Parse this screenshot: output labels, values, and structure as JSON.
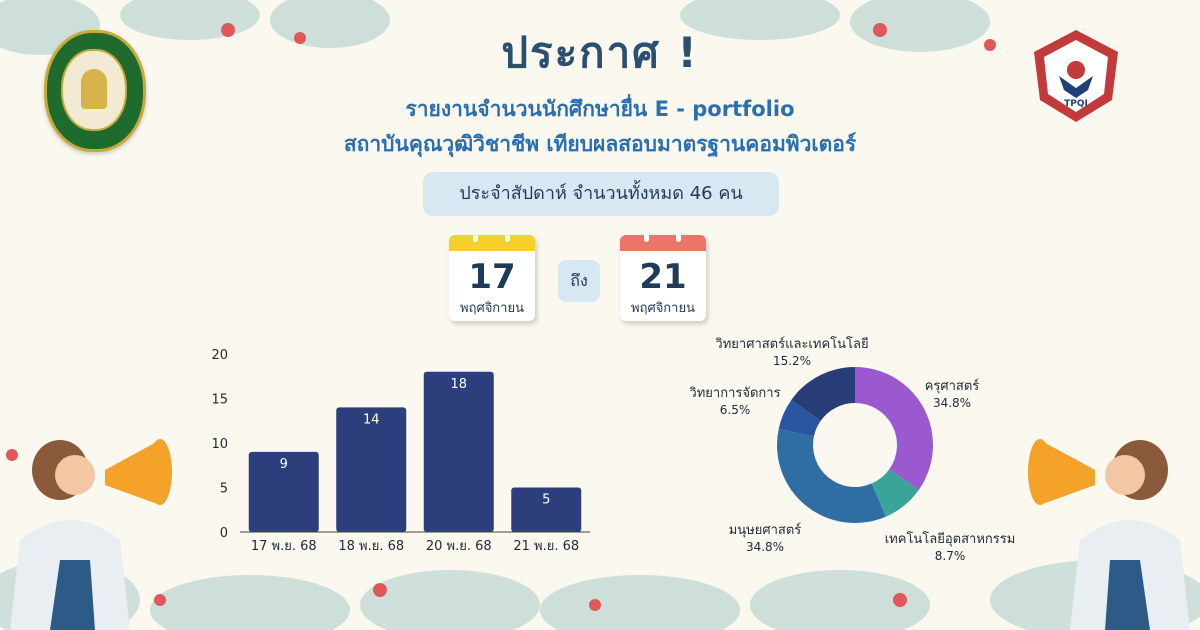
{
  "header": {
    "title": "ประกาศ !",
    "subtitle_line1": "รายงานจำนวนนักศึกษายื่น E - portfolio",
    "subtitle_line2": "สถาบันคุณวุฒิวิชาชีพ เทียบผลสอบมาตรฐานคอมพิวเตอร์",
    "summary": "ประจำสัปดาห์ จำนวนทั้งหมด 46 คน"
  },
  "logos": {
    "left": "Kamphaeng Phet Rajabhat University",
    "right": "TPQI",
    "right_ring": "THAILAND PROFESSIONAL QUALIFICATION INSTITUTE"
  },
  "date_range": {
    "start_day": "17",
    "start_month": "พฤศจิกายน",
    "separator": "ถึง",
    "end_day": "21",
    "end_month": "พฤศจิกายน"
  },
  "colors": {
    "bar": "#2c3f7c",
    "cal_start": "#f5cf2a",
    "cal_end": "#ef7468",
    "title": "#2b4f6e",
    "subtitle": "#2a6fb0"
  },
  "chart_data": [
    {
      "type": "bar",
      "categories": [
        "17 พ.ย. 68",
        "18 พ.ย. 68",
        "20 พ.ย. 68",
        "21 พ.ย. 68"
      ],
      "values": [
        9,
        14,
        18,
        5
      ],
      "ylim": [
        0,
        20
      ],
      "yticks": [
        0,
        5,
        10,
        15,
        20
      ],
      "grid": false,
      "data_labels": true
    },
    {
      "type": "pie",
      "donut": true,
      "slices": [
        {
          "label": "ครุศาสตร์",
          "percent_label": "34.8%",
          "value": 34.8,
          "color": "#9b59d0"
        },
        {
          "label": "เทคโนโลยีอุตสาหกรรม",
          "percent_label": "8.7%",
          "value": 8.7,
          "color": "#3aa39a"
        },
        {
          "label": "มนุษยศาสตร์",
          "percent_label": "34.8%",
          "value": 34.8,
          "color": "#2f6ea5"
        },
        {
          "label": "วิทยาการจัดการ",
          "percent_label": "6.5%",
          "value": 6.5,
          "color": "#2a55a0"
        },
        {
          "label": "วิทยาศาสตร์และเทคโนโลยี",
          "percent_label": "15.2%",
          "value": 15.2,
          "color": "#283d78"
        }
      ]
    }
  ]
}
